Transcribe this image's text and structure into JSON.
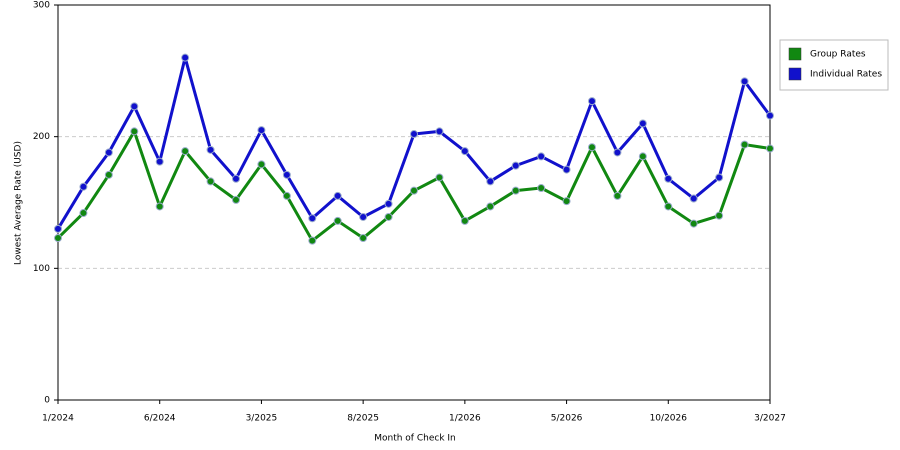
{
  "chart_data": {
    "type": "line",
    "x_label": "Month of Check In",
    "y_label": "Lowest Average Rate (USD)",
    "categories": [
      "1/2024",
      null,
      null,
      null,
      "6/2024",
      null,
      null,
      null,
      "3/2025",
      null,
      null,
      null,
      "8/2025",
      null,
      null,
      null,
      "1/2026",
      null,
      null,
      null,
      "5/2026",
      null,
      null,
      null,
      "10/2026",
      null,
      null,
      null,
      "3/2027"
    ],
    "series": [
      {
        "name": "Group Rates",
        "color": "#118811",
        "values": [
          123,
          142,
          171,
          204,
          147,
          189,
          166,
          152,
          179,
          155,
          121,
          136,
          123,
          139,
          159,
          169,
          136,
          147,
          159,
          161,
          151,
          192,
          155,
          185,
          147,
          134,
          140,
          194,
          191
        ]
      },
      {
        "name": "Individual Rates",
        "color": "#1111cc",
        "values": [
          130,
          162,
          188,
          223,
          181,
          260,
          190,
          168,
          205,
          171,
          138,
          155,
          139,
          149,
          202,
          204,
          189,
          166,
          178,
          185,
          175,
          227,
          188,
          210,
          168,
          153,
          169,
          242,
          216
        ]
      }
    ],
    "ylim": [
      0,
      300
    ],
    "yticks": [
      0,
      100,
      200,
      300
    ],
    "grid": true,
    "legend": "right"
  }
}
